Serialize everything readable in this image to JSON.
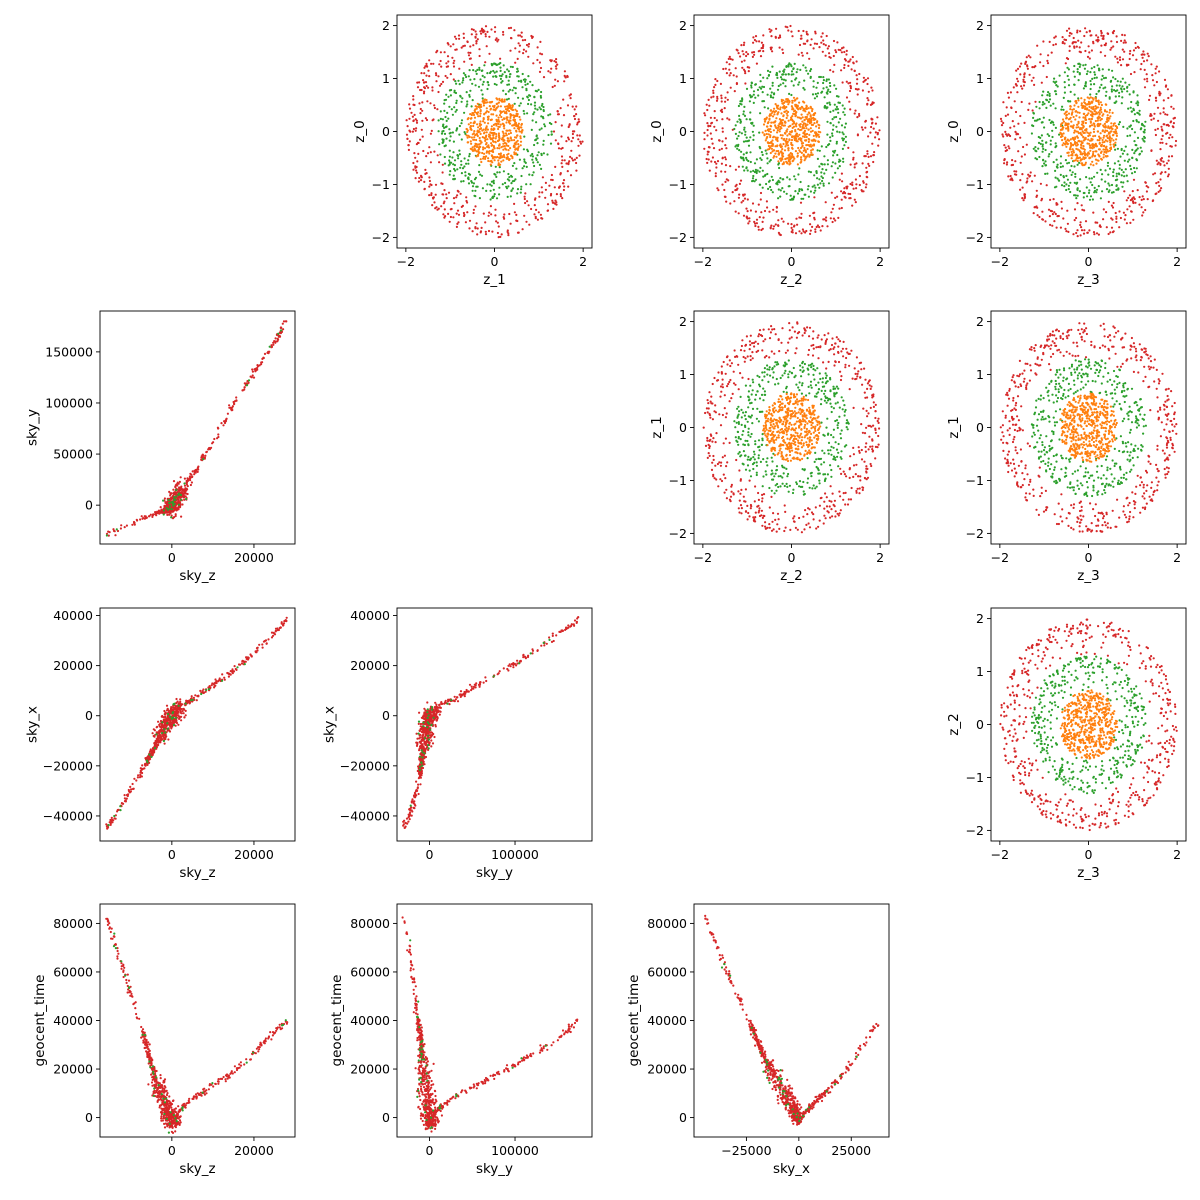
{
  "colors": {
    "ring_outer": "#d62728",
    "ring_mid": "#2ca02c",
    "ring_inner": "#ff7f0e"
  },
  "chart_data": [
    {
      "type": "scatter",
      "style": "rings",
      "panel": "z_0-vs-z_1",
      "xlabel": "z_1",
      "ylabel": "z_0",
      "xlim": [
        -2.2,
        2.2
      ],
      "ylim": [
        -2.2,
        2.2
      ],
      "xticks": [
        -2,
        0,
        2
      ],
      "xtick_labels": [
        "−2",
        "0",
        "2"
      ],
      "yticks": [
        -2,
        -1,
        0,
        1,
        2
      ],
      "ytick_labels": [
        "−2",
        "−1",
        "0",
        "1",
        "2"
      ],
      "series": [
        {
          "color": "#d62728",
          "radius_range": [
            1.3,
            2.0
          ],
          "count": 520
        },
        {
          "color": "#2ca02c",
          "radius_range": [
            0.6,
            1.3
          ],
          "count": 420
        },
        {
          "color": "#ff7f0e",
          "radius_range": [
            0.0,
            0.65
          ],
          "count": 520
        }
      ]
    },
    {
      "type": "scatter",
      "style": "rings",
      "panel": "z_0-vs-z_2",
      "xlabel": "z_2",
      "ylabel": "z_0",
      "xlim": [
        -2.2,
        2.2
      ],
      "ylim": [
        -2.2,
        2.2
      ],
      "xticks": [
        -2,
        0,
        2
      ],
      "xtick_labels": [
        "−2",
        "0",
        "2"
      ],
      "yticks": [
        -2,
        -1,
        0,
        1,
        2
      ],
      "ytick_labels": [
        "−2",
        "−1",
        "0",
        "1",
        "2"
      ],
      "series": [
        {
          "color": "#d62728",
          "radius_range": [
            1.3,
            2.0
          ],
          "count": 520
        },
        {
          "color": "#2ca02c",
          "radius_range": [
            0.6,
            1.3
          ],
          "count": 420
        },
        {
          "color": "#ff7f0e",
          "radius_range": [
            0.0,
            0.65
          ],
          "count": 520
        }
      ]
    },
    {
      "type": "scatter",
      "style": "rings",
      "panel": "z_0-vs-z_3",
      "xlabel": "z_3",
      "ylabel": "z_0",
      "xlim": [
        -2.2,
        2.2
      ],
      "ylim": [
        -2.2,
        2.2
      ],
      "xticks": [
        -2,
        0,
        2
      ],
      "xtick_labels": [
        "−2",
        "0",
        "2"
      ],
      "yticks": [
        -2,
        -1,
        0,
        1,
        2
      ],
      "ytick_labels": [
        "−2",
        "−1",
        "0",
        "1",
        "2"
      ],
      "series": [
        {
          "color": "#d62728",
          "radius_range": [
            1.3,
            2.0
          ],
          "count": 520
        },
        {
          "color": "#2ca02c",
          "radius_range": [
            0.6,
            1.3
          ],
          "count": 420
        },
        {
          "color": "#ff7f0e",
          "radius_range": [
            0.0,
            0.65
          ],
          "count": 520
        }
      ]
    },
    {
      "type": "scatter",
      "style": "curve",
      "panel": "sky_y-vs-sky_z",
      "xlabel": "sky_z",
      "ylabel": "sky_y",
      "xlim": [
        -17500,
        30000
      ],
      "ylim": [
        -38000,
        190000
      ],
      "xticks": [
        0,
        20000
      ],
      "xtick_labels": [
        "0",
        "20000"
      ],
      "yticks": [
        0,
        50000,
        100000,
        150000
      ],
      "ytick_labels": [
        "0",
        "50000",
        "100000",
        "150000"
      ],
      "curve": [
        [
          -16000,
          -30000
        ],
        [
          -8000,
          -14000
        ],
        [
          -3000,
          -7000
        ],
        [
          -500,
          -4000
        ],
        [
          0,
          0
        ],
        [
          500,
          3500
        ],
        [
          3000,
          19000
        ],
        [
          6000,
          34000
        ],
        [
          10000,
          62000
        ],
        [
          15000,
          98000
        ],
        [
          20000,
          130000
        ],
        [
          25000,
          158000
        ],
        [
          28000,
          180000
        ]
      ],
      "series": [
        {
          "color": "#d62728",
          "count": 700
        },
        {
          "color": "#2ca02c",
          "count": 40
        }
      ]
    },
    {
      "type": "scatter",
      "style": "rings",
      "panel": "z_1-vs-z_2",
      "xlabel": "z_2",
      "ylabel": "z_1",
      "xlim": [
        -2.2,
        2.2
      ],
      "ylim": [
        -2.2,
        2.2
      ],
      "xticks": [
        -2,
        0,
        2
      ],
      "xtick_labels": [
        "−2",
        "0",
        "2"
      ],
      "yticks": [
        -2,
        -1,
        0,
        1,
        2
      ],
      "ytick_labels": [
        "−2",
        "−1",
        "0",
        "1",
        "2"
      ],
      "series": [
        {
          "color": "#d62728",
          "radius_range": [
            1.3,
            2.0
          ],
          "count": 520
        },
        {
          "color": "#2ca02c",
          "radius_range": [
            0.6,
            1.3
          ],
          "count": 420
        },
        {
          "color": "#ff7f0e",
          "radius_range": [
            0.0,
            0.65
          ],
          "count": 520
        }
      ]
    },
    {
      "type": "scatter",
      "style": "rings",
      "panel": "z_1-vs-z_3",
      "xlabel": "z_3",
      "ylabel": "z_1",
      "xlim": [
        -2.2,
        2.2
      ],
      "ylim": [
        -2.2,
        2.2
      ],
      "xticks": [
        -2,
        0,
        2
      ],
      "xtick_labels": [
        "−2",
        "0",
        "2"
      ],
      "yticks": [
        -2,
        -1,
        0,
        1,
        2
      ],
      "ytick_labels": [
        "−2",
        "−1",
        "0",
        "1",
        "2"
      ],
      "series": [
        {
          "color": "#d62728",
          "radius_range": [
            1.3,
            2.0
          ],
          "count": 520
        },
        {
          "color": "#2ca02c",
          "radius_range": [
            0.6,
            1.3
          ],
          "count": 420
        },
        {
          "color": "#ff7f0e",
          "radius_range": [
            0.0,
            0.65
          ],
          "count": 520
        }
      ]
    },
    {
      "type": "scatter",
      "style": "curve",
      "panel": "sky_x-vs-sky_z",
      "xlabel": "sky_z",
      "ylabel": "sky_x",
      "xlim": [
        -17500,
        30000
      ],
      "ylim": [
        -50000,
        43000
      ],
      "xticks": [
        0,
        20000
      ],
      "xtick_labels": [
        "0",
        "20000"
      ],
      "yticks": [
        -40000,
        -20000,
        0,
        20000,
        40000
      ],
      "ytick_labels": [
        "−40000",
        "−20000",
        "0",
        "20000",
        "40000"
      ],
      "curve": [
        [
          -16000,
          -45000
        ],
        [
          -12000,
          -35000
        ],
        [
          -8000,
          -24000
        ],
        [
          -4000,
          -12000
        ],
        [
          -1500,
          -4000
        ],
        [
          0,
          0
        ],
        [
          2000,
          3500
        ],
        [
          5000,
          6500
        ],
        [
          10000,
          12000
        ],
        [
          15000,
          18000
        ],
        [
          20000,
          25000
        ],
        [
          25000,
          33000
        ],
        [
          28000,
          38500
        ]
      ],
      "series": [
        {
          "color": "#d62728",
          "count": 700
        },
        {
          "color": "#2ca02c",
          "count": 40
        }
      ]
    },
    {
      "type": "scatter",
      "style": "curve",
      "panel": "sky_x-vs-sky_y",
      "xlabel": "sky_y",
      "ylabel": "sky_x",
      "xlim": [
        -38000,
        190000
      ],
      "ylim": [
        -50000,
        43000
      ],
      "xticks": [
        0,
        100000
      ],
      "xtick_labels": [
        "0",
        "100000"
      ],
      "yticks": [
        -40000,
        -20000,
        0,
        20000,
        40000
      ],
      "ytick_labels": [
        "−40000",
        "−20000",
        "0",
        "20000",
        "40000"
      ],
      "curve": [
        [
          -30000,
          -45000
        ],
        [
          -20000,
          -36000
        ],
        [
          -12000,
          -25000
        ],
        [
          -7000,
          -14000
        ],
        [
          -4000,
          -5000
        ],
        [
          0,
          0
        ],
        [
          10000,
          3500
        ],
        [
          30000,
          7000
        ],
        [
          60000,
          13000
        ],
        [
          100000,
          21000
        ],
        [
          140000,
          30000
        ],
        [
          175000,
          38500
        ]
      ],
      "series": [
        {
          "color": "#d62728",
          "count": 700
        },
        {
          "color": "#2ca02c",
          "count": 40
        }
      ]
    },
    {
      "type": "scatter",
      "style": "rings",
      "panel": "z_2-vs-z_3",
      "xlabel": "z_3",
      "ylabel": "z_2",
      "xlim": [
        -2.2,
        2.2
      ],
      "ylim": [
        -2.2,
        2.2
      ],
      "xticks": [
        -2,
        0,
        2
      ],
      "xtick_labels": [
        "−2",
        "0",
        "2"
      ],
      "yticks": [
        -2,
        -1,
        0,
        1,
        2
      ],
      "ytick_labels": [
        "−2",
        "−1",
        "0",
        "1",
        "2"
      ],
      "series": [
        {
          "color": "#d62728",
          "radius_range": [
            1.3,
            2.0
          ],
          "count": 520
        },
        {
          "color": "#2ca02c",
          "radius_range": [
            0.6,
            1.3
          ],
          "count": 420
        },
        {
          "color": "#ff7f0e",
          "radius_range": [
            0.0,
            0.65
          ],
          "count": 520
        }
      ]
    },
    {
      "type": "scatter",
      "style": "curve",
      "panel": "geocent_time-vs-sky_z",
      "xlabel": "sky_z",
      "ylabel": "geocent_time",
      "xlim": [
        -17500,
        30000
      ],
      "ylim": [
        -8000,
        88000
      ],
      "xticks": [
        0,
        20000
      ],
      "xtick_labels": [
        "0",
        "20000"
      ],
      "yticks": [
        0,
        20000,
        40000,
        60000,
        80000
      ],
      "ytick_labels": [
        "0",
        "20000",
        "40000",
        "60000",
        "80000"
      ],
      "curve": [
        [
          -16000,
          83000
        ],
        [
          -12000,
          62000
        ],
        [
          -8000,
          40000
        ],
        [
          -4000,
          16000
        ],
        [
          -1500,
          5000
        ],
        [
          0,
          -2000
        ],
        [
          1500,
          2000
        ],
        [
          4000,
          6500
        ],
        [
          8000,
          11000
        ],
        [
          15000,
          19000
        ],
        [
          22000,
          30000
        ],
        [
          28000,
          40000
        ]
      ],
      "series": [
        {
          "color": "#d62728",
          "count": 700
        },
        {
          "color": "#2ca02c",
          "count": 40
        }
      ]
    },
    {
      "type": "scatter",
      "style": "curve",
      "panel": "geocent_time-vs-sky_y",
      "xlabel": "sky_y",
      "ylabel": "geocent_time",
      "xlim": [
        -38000,
        190000
      ],
      "ylim": [
        -8000,
        88000
      ],
      "xticks": [
        0,
        100000
      ],
      "xtick_labels": [
        "0",
        "100000"
      ],
      "yticks": [
        0,
        20000,
        40000,
        60000,
        80000
      ],
      "ytick_labels": [
        "0",
        "20000",
        "40000",
        "60000",
        "80000"
      ],
      "curve": [
        [
          -30000,
          83000
        ],
        [
          -22000,
          64000
        ],
        [
          -15000,
          45000
        ],
        [
          -8000,
          25000
        ],
        [
          -3000,
          8000
        ],
        [
          0,
          -2000
        ],
        [
          8000,
          3000
        ],
        [
          30000,
          9000
        ],
        [
          60000,
          14000
        ],
        [
          100000,
          22000
        ],
        [
          140000,
          30000
        ],
        [
          175000,
          40000
        ]
      ],
      "series": [
        {
          "color": "#d62728",
          "count": 700
        },
        {
          "color": "#2ca02c",
          "count": 40
        }
      ]
    },
    {
      "type": "scatter",
      "style": "curve",
      "panel": "geocent_time-vs-sky_x",
      "xlabel": "sky_x",
      "ylabel": "geocent_time",
      "xlim": [
        -50000,
        43000
      ],
      "ylim": [
        -8000,
        88000
      ],
      "xticks": [
        -25000,
        0,
        25000
      ],
      "xtick_labels": [
        "−25000",
        "0",
        "25000"
      ],
      "yticks": [
        0,
        20000,
        40000,
        60000,
        80000
      ],
      "ytick_labels": [
        "0",
        "20000",
        "40000",
        "60000",
        "80000"
      ],
      "curve": [
        [
          -45000,
          83000
        ],
        [
          -35000,
          62000
        ],
        [
          -25000,
          42000
        ],
        [
          -15000,
          22000
        ],
        [
          -7000,
          10000
        ],
        [
          -2000,
          3000
        ],
        [
          0,
          -2000
        ],
        [
          3000,
          2000
        ],
        [
          8000,
          6500
        ],
        [
          15000,
          12000
        ],
        [
          25000,
          22000
        ],
        [
          38000,
          40000
        ]
      ],
      "series": [
        {
          "color": "#d62728",
          "count": 700
        },
        {
          "color": "#2ca02c",
          "count": 40
        }
      ]
    }
  ]
}
